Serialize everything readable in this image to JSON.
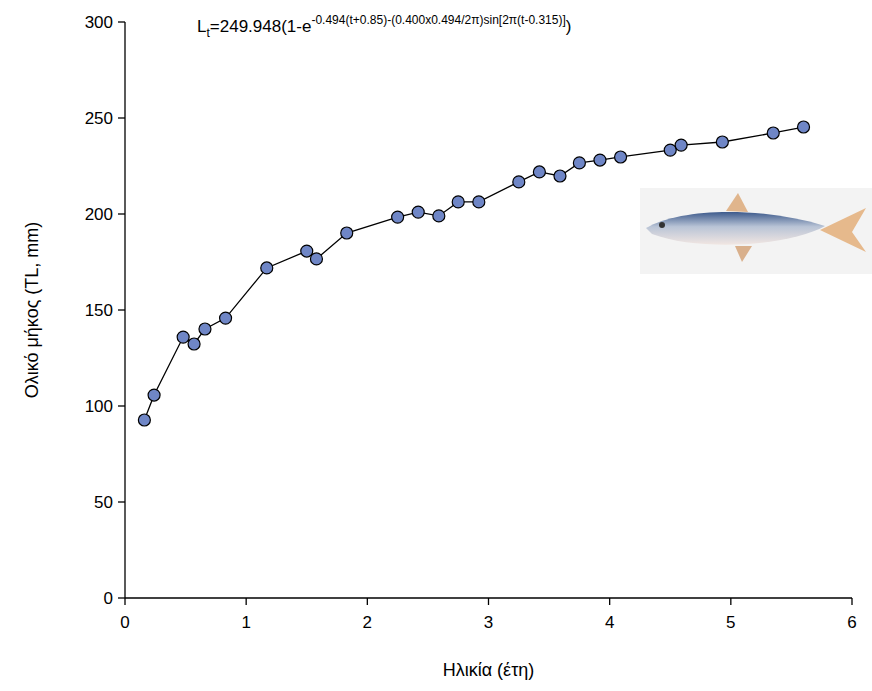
{
  "chart_data": {
    "type": "line",
    "title": "Lt=249.948(1-e-0.494(t+0.85)-(0.400x0.494/2π)sin[2π(t-0.315)])",
    "x_label": "Ηλικία (έτη)",
    "y_label": "Ολικό μήκος (TL, mm)",
    "x": [
      0.16,
      0.24,
      0.48,
      0.57,
      0.66,
      0.83,
      1.17,
      1.5,
      1.58,
      1.83,
      2.25,
      2.42,
      2.59,
      2.75,
      2.92,
      3.25,
      3.42,
      3.59,
      3.75,
      3.92,
      4.09,
      4.5,
      4.59,
      4.93,
      5.35,
      5.6
    ],
    "series": [
      {
        "name": "TL",
        "color": "#6f86c6",
        "marker": "circle",
        "line_style": "solid",
        "values": [
          92.7,
          105.7,
          135.9,
          132.3,
          140.1,
          145.8,
          171.9,
          180.7,
          176.6,
          190.1,
          198.4,
          201.0,
          199.0,
          206.3,
          206.3,
          216.7,
          221.9,
          219.8,
          226.6,
          228.1,
          229.7,
          233.3,
          235.9,
          237.5,
          242.2,
          245.3
        ]
      }
    ],
    "xlim": [
      0,
      6
    ],
    "xticks": [
      0,
      1,
      2,
      3,
      4,
      5,
      6
    ],
    "ylim": [
      0,
      300
    ],
    "yticks": [
      0,
      50,
      100,
      150,
      200,
      250,
      300
    ],
    "grid": false
  }
}
